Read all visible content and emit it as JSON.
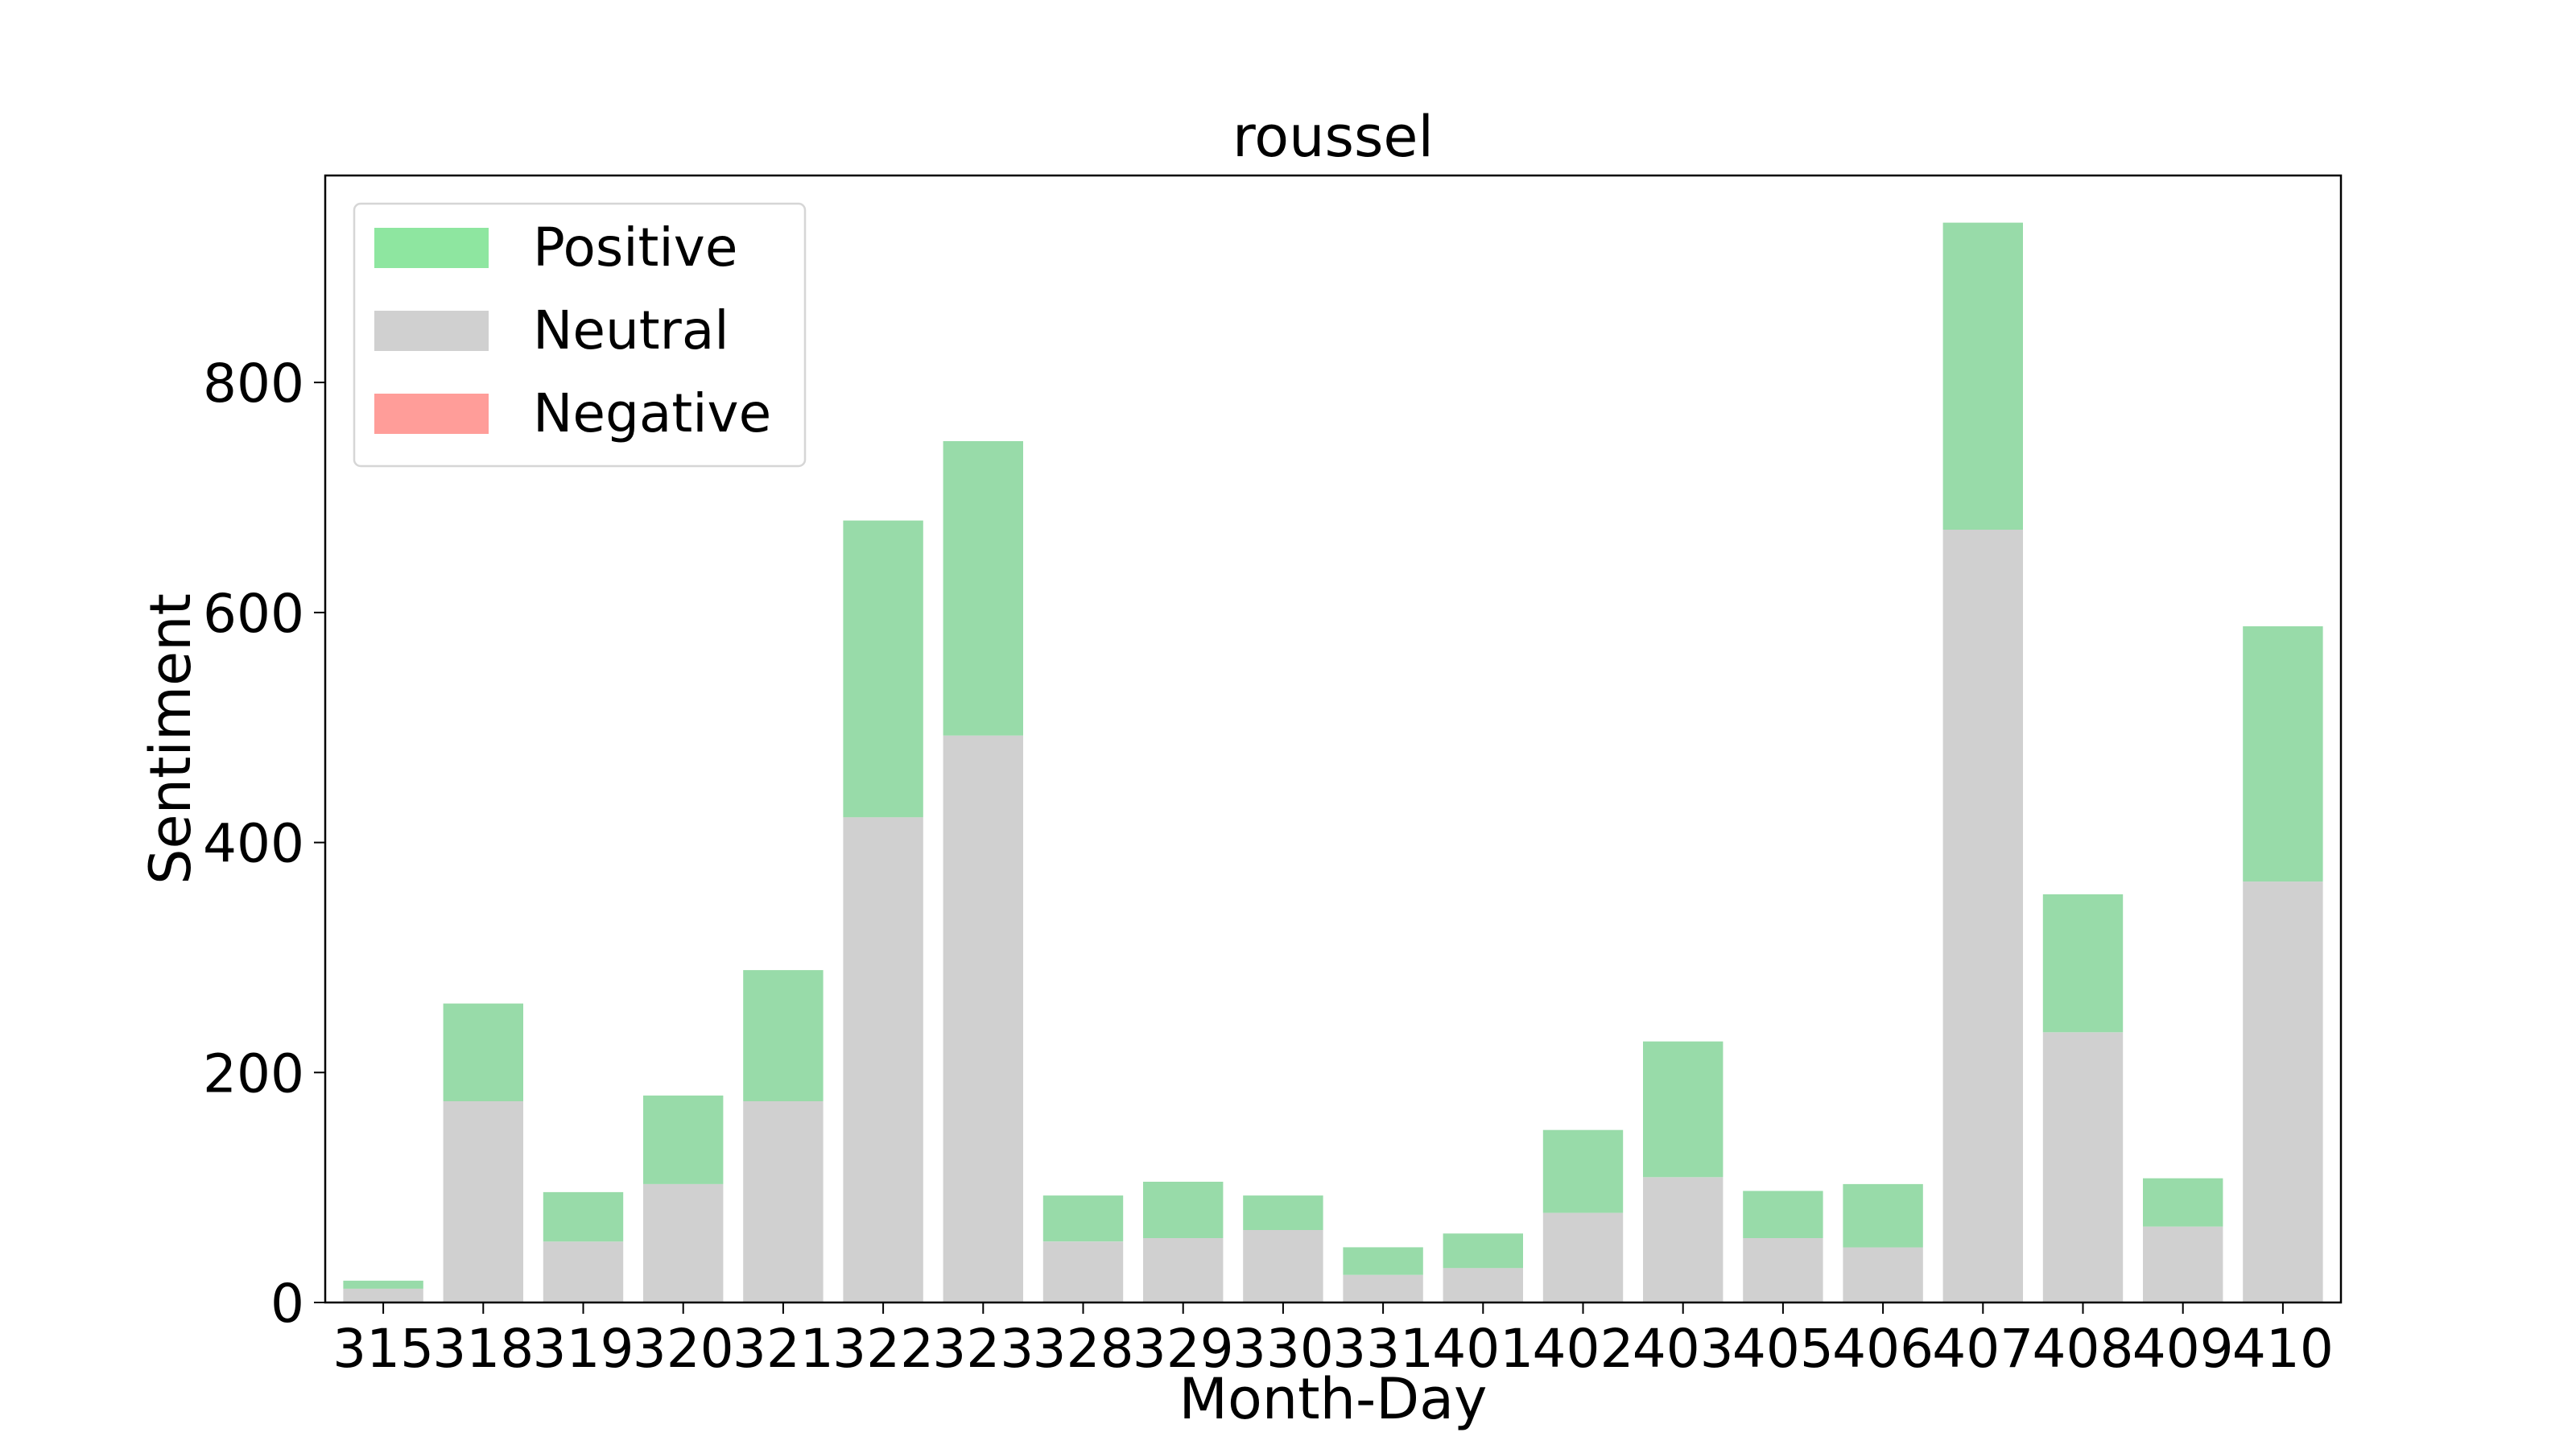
{
  "chart_data": {
    "type": "bar",
    "stacked": true,
    "title": "roussel",
    "xlabel": "Month-Day",
    "ylabel": "Sentiment",
    "ylim": [
      0,
      980
    ],
    "yticks": [
      0,
      200,
      400,
      600,
      800
    ],
    "grid": false,
    "legend_position": "top-left",
    "categories": [
      "315",
      "318",
      "319",
      "320",
      "321",
      "322",
      "323",
      "328",
      "329",
      "330",
      "331",
      "401",
      "402",
      "403",
      "405",
      "406",
      "407",
      "408",
      "409",
      "410"
    ],
    "series": [
      {
        "name": "Neutral",
        "color": "#d0d0d0",
        "values": [
          12,
          175,
          53,
          103,
          175,
          422,
          493,
          53,
          56,
          63,
          24,
          30,
          78,
          109,
          56,
          48,
          672,
          235,
          66,
          366
        ]
      },
      {
        "name": "Positive",
        "color": "#98dba9",
        "values": [
          7,
          85,
          43,
          77,
          114,
          258,
          256,
          40,
          49,
          30,
          24,
          30,
          72,
          118,
          41,
          55,
          267,
          120,
          42,
          222
        ]
      },
      {
        "name": "Negative",
        "color": "#ff9d99",
        "values": [
          0,
          0,
          0,
          0,
          0,
          0,
          0,
          0,
          0,
          0,
          0,
          0,
          0,
          0,
          0,
          0,
          0,
          0,
          0,
          0
        ]
      }
    ],
    "legend": [
      {
        "name": "Positive",
        "color": "#8ee6a0"
      },
      {
        "name": "Neutral",
        "color": "#d0d0d0"
      },
      {
        "name": "Negative",
        "color": "#ff9d99"
      }
    ]
  }
}
